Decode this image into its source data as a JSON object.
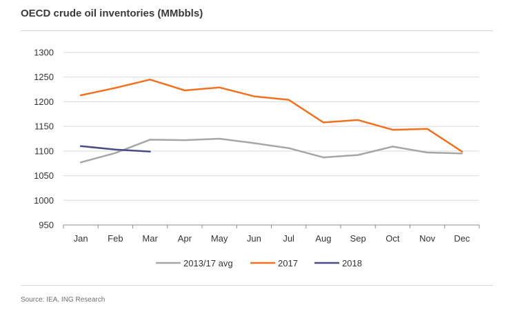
{
  "chart_data": {
    "type": "line",
    "title": "OECD crude oil inventories (MMbbls)",
    "categories": [
      "Jan",
      "Feb",
      "Mar",
      "Apr",
      "May",
      "Jun",
      "Jul",
      "Aug",
      "Sep",
      "Oct",
      "Nov",
      "Dec"
    ],
    "yticks": [
      "950",
      "1000",
      "1050",
      "1100",
      "1150",
      "1200",
      "1250",
      "1300"
    ],
    "ylim": [
      950,
      1300
    ],
    "grid": true,
    "legend_position": "bottom",
    "series": [
      {
        "name": "2013/17 avg",
        "color": "#a6a6a6",
        "values": [
          1077,
          1096,
          1123,
          1122,
          1125,
          1116,
          1106,
          1087,
          1092,
          1109,
          1097,
          1095
        ]
      },
      {
        "name": "2017",
        "color": "#f37021",
        "values": [
          1213,
          1228,
          1245,
          1223,
          1229,
          1211,
          1204,
          1158,
          1163,
          1143,
          1145,
          1099
        ]
      },
      {
        "name": "2018",
        "color": "#4b4a85",
        "values": [
          1110,
          1103,
          1099,
          null,
          null,
          null,
          null,
          null,
          null,
          null,
          null,
          null
        ]
      }
    ],
    "source": "Source: IEA, ING Research"
  }
}
